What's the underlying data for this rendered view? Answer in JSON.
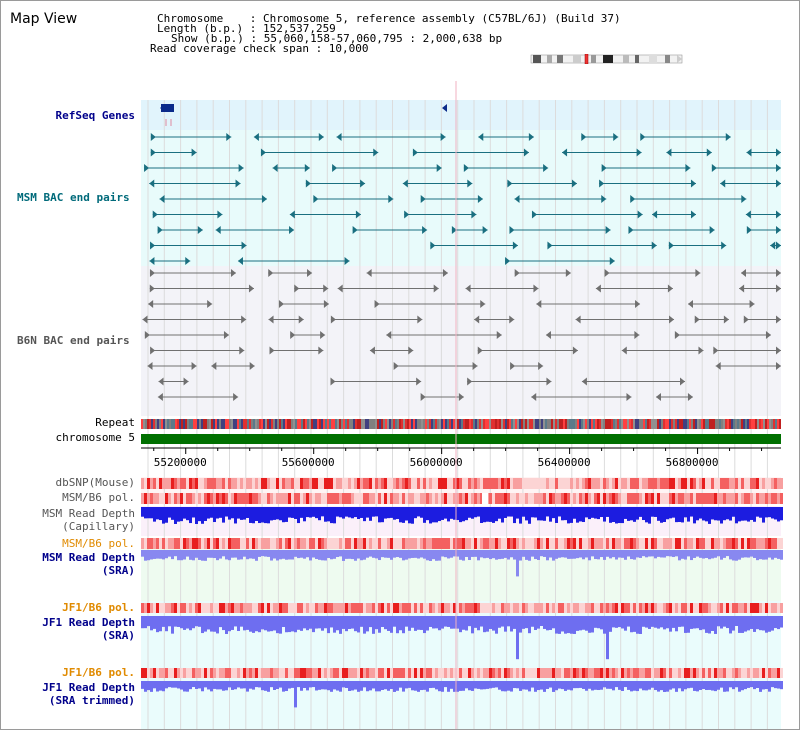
{
  "title": "Map View",
  "info": {
    "chromosome": "Chromosome    : Chromosome 5, reference assembly (C57BL/6J) (Build 37)",
    "length": "Length (b.p.) : 152,537,259",
    "show": "Show (b.p.) : 55,060,158-57,060,795 : 2,000,638 bp",
    "coverage": "Read coverage check span : 10,000"
  },
  "tracks": {
    "refseq": "RefSeq Genes",
    "msm_bac": "MSM BAC end pairs",
    "b6n_bac": "B6N BAC end pairs",
    "repeat": "Repeat",
    "chromosome": "chromosome 5",
    "dbsnp": "dbSNP(Mouse)",
    "msm_b6_pol": "MSM/B6 pol.",
    "msm_depth_cap_1": "MSM Read Depth",
    "msm_depth_cap_2": "(Capillary)",
    "msm_b6_pol_2": "MSM/B6 pol.",
    "msm_depth_sra_1": "MSM Read Depth",
    "msm_depth_sra_2": "(SRA)",
    "jf1_b6_pol": "JF1/B6 pol.",
    "jf1_depth_sra_1": "JF1 Read Depth",
    "jf1_depth_sra_2": "(SRA)",
    "jf1_b6_pol_2": "JF1/B6 pol.",
    "jf1_depth_trim_1": "JF1 Read Depth",
    "jf1_depth_trim_2": "(SRA trimmed)"
  },
  "axis": {
    "ticks": [
      {
        "value": 55200000,
        "label": "55200000"
      },
      {
        "value": 55600000,
        "label": "55600000"
      },
      {
        "value": 56000000,
        "label": "56000000"
      },
      {
        "value": 56400000,
        "label": "56400000"
      },
      {
        "value": 56800000,
        "label": "56800000"
      }
    ],
    "start": 55060158,
    "end": 57060795
  },
  "colors": {
    "refseq_bg": "#e1f4fc",
    "msm_bac_bg": "#e8fbfb",
    "b6n_bac_bg": "#f3f3f8",
    "msm_bac": "#1a6f80",
    "b6n_bac": "#707070",
    "chromosome": "#007000",
    "label_blue": "#00008b",
    "label_teal": "#006a7a",
    "label_gray": "#555555",
    "label_orange": "#e08a00",
    "depth_dark": "#1c1ce0",
    "depth_light": "#7a7af0",
    "pol_red": "#f04a4a"
  }
}
